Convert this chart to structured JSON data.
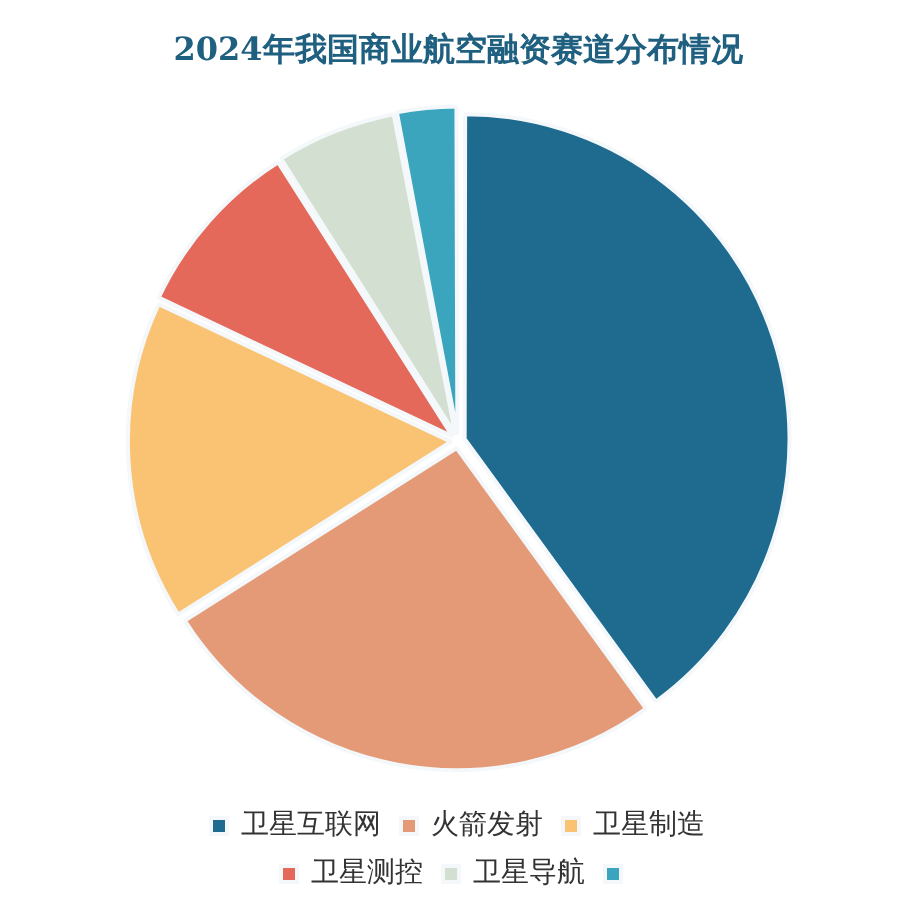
{
  "chart_data": {
    "type": "pie",
    "title": "2024年我国商业航空融资赛道分布情况",
    "categories": [
      "卫星互联网",
      "火箭发射",
      "卫星制造",
      "卫星测控",
      "卫星导航",
      null
    ],
    "values": [
      40,
      26,
      16,
      9,
      6,
      3
    ],
    "colors": [
      "#1e6b8f",
      "#e49a76",
      "#f9c373",
      "#e4695a",
      "#d3dfd0",
      "#3aa5bd"
    ],
    "legend": "bottom"
  }
}
